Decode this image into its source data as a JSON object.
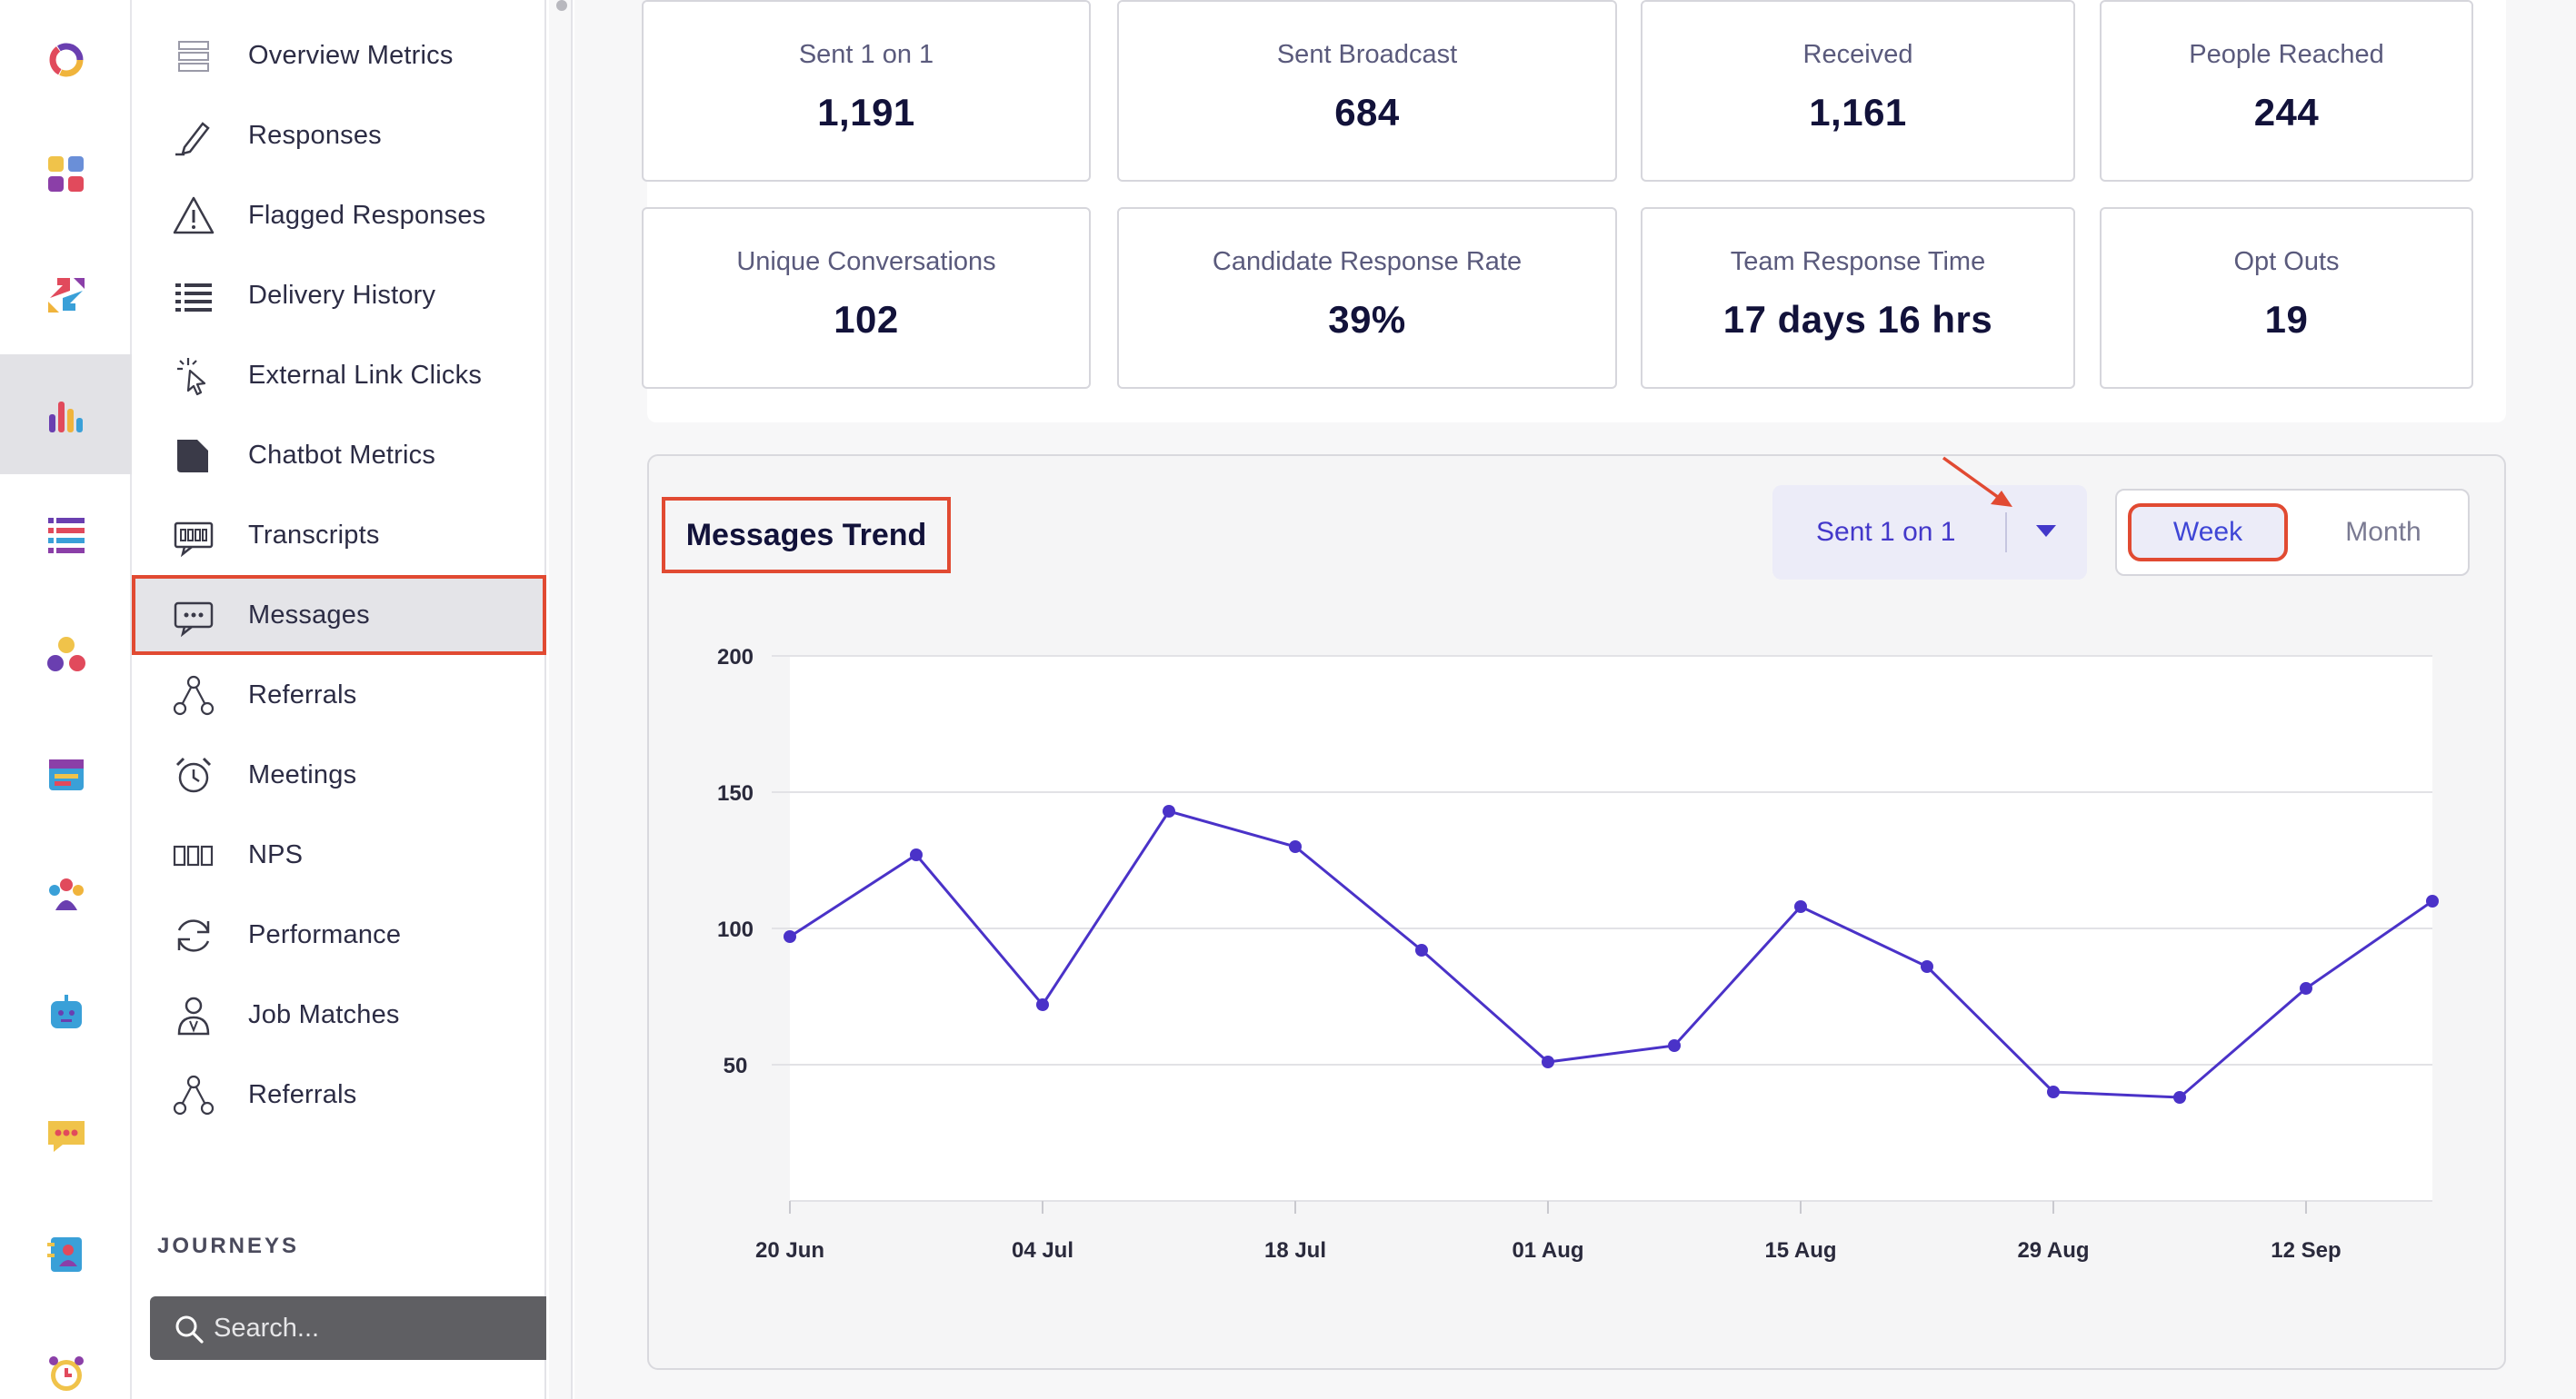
{
  "rail": {
    "items": [
      {
        "icon": "brand-ring-icon"
      },
      {
        "icon": "apps-grid-icon"
      },
      {
        "icon": "arrows-exchange-icon"
      },
      {
        "icon": "analytics-bars-icon",
        "active": true
      },
      {
        "icon": "list-stack-icon"
      },
      {
        "icon": "people-network-icon"
      },
      {
        "icon": "calendar-icon"
      },
      {
        "icon": "team-icon"
      },
      {
        "icon": "chatbot-icon"
      },
      {
        "icon": "chat-bubble-icon"
      },
      {
        "icon": "contact-book-icon"
      },
      {
        "icon": "alarm-clock-icon"
      }
    ]
  },
  "sidebar": {
    "items": [
      {
        "label": "Overview Metrics",
        "icon": "overview-icon"
      },
      {
        "label": "Responses",
        "icon": "pen-icon"
      },
      {
        "label": "Flagged Responses",
        "icon": "warning-icon"
      },
      {
        "label": "Delivery History",
        "icon": "list-icon"
      },
      {
        "label": "External Link Clicks",
        "icon": "click-cursor-icon"
      },
      {
        "label": "Chatbot Metrics",
        "icon": "chatbot-doc-icon"
      },
      {
        "label": "Transcripts",
        "icon": "transcript-icon"
      },
      {
        "label": "Messages",
        "icon": "message-icon",
        "active": true
      },
      {
        "label": "Referrals",
        "icon": "referral-icon"
      },
      {
        "label": "Meetings",
        "icon": "alarm-icon"
      },
      {
        "label": "NPS",
        "icon": "nps-icon"
      },
      {
        "label": "Performance",
        "icon": "refresh-icon"
      },
      {
        "label": "Job Matches",
        "icon": "person-icon"
      },
      {
        "label": "Referrals",
        "icon": "referral-icon"
      }
    ],
    "section_label": "JOURNEYS",
    "search": {
      "placeholder": "Search..."
    }
  },
  "metrics": [
    {
      "label": "Sent 1 on 1",
      "value": "1,191"
    },
    {
      "label": "Sent Broadcast",
      "value": "684"
    },
    {
      "label": "Received",
      "value": "1,161"
    },
    {
      "label": "People Reached",
      "value": "244"
    },
    {
      "label": "Unique Conversations",
      "value": "102"
    },
    {
      "label": "Candidate Response Rate",
      "value": "39%"
    },
    {
      "label": "Team Response Time",
      "value": "17 days 16 hrs"
    },
    {
      "label": "Opt Outs",
      "value": "19"
    }
  ],
  "trend": {
    "title": "Messages Trend",
    "series_select": "Sent 1 on 1",
    "period": {
      "week": "Week",
      "month": "Month",
      "selected": "Week"
    }
  },
  "colors": {
    "accent": "#4338ca",
    "line": "#4a32c8",
    "annotation": "#e14a32"
  },
  "chart_data": {
    "type": "line",
    "x": [
      "20 Jun",
      "27 Jun",
      "04 Jul",
      "11 Jul",
      "18 Jul",
      "25 Jul",
      "01 Aug",
      "08 Aug",
      "15 Aug",
      "22 Aug",
      "29 Aug",
      "05 Sep",
      "12 Sep",
      "19 Sep"
    ],
    "x_tick_labels": [
      "20 Jun",
      "04 Jul",
      "18 Jul",
      "01 Aug",
      "15 Aug",
      "29 Aug",
      "12 Sep"
    ],
    "series": [
      {
        "values": [
          97,
          127,
          72,
          143,
          130,
          92,
          51,
          57,
          108,
          86,
          40,
          38,
          78,
          110
        ]
      }
    ],
    "y_ticks": [
      50,
      100,
      150,
      200
    ],
    "ylim": [
      0,
      200
    ],
    "grid": true,
    "legend": "none"
  }
}
